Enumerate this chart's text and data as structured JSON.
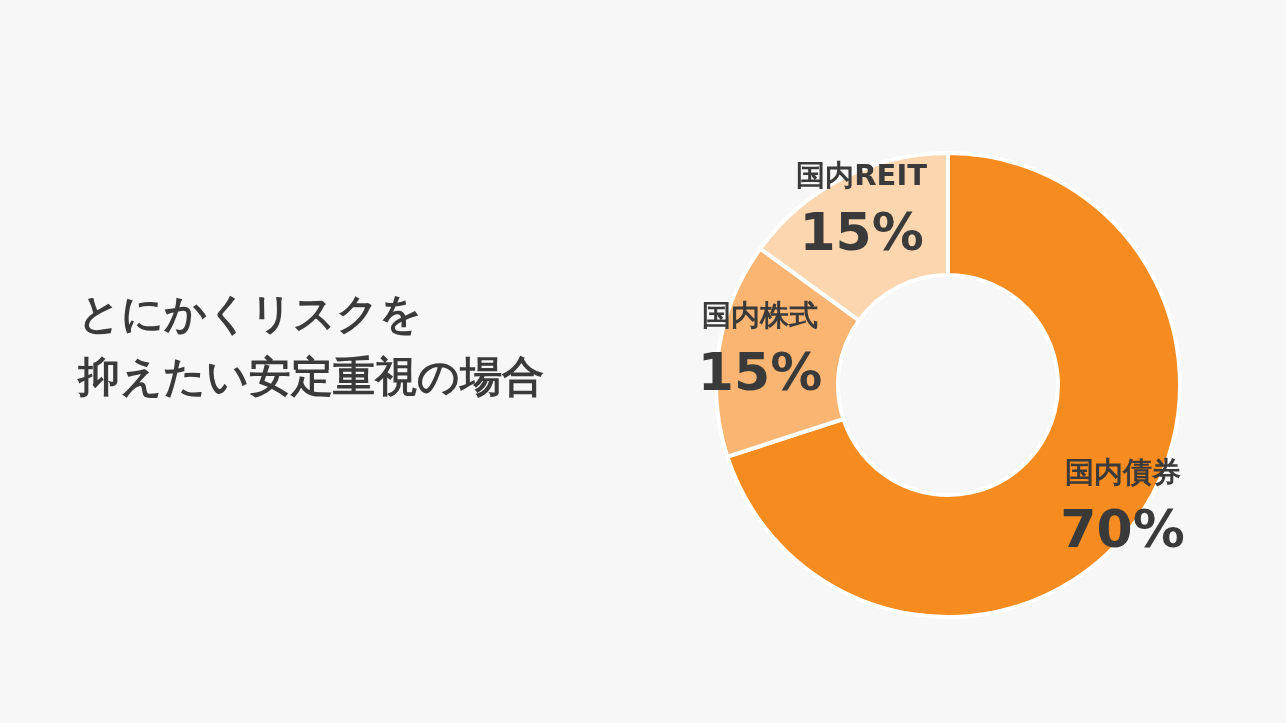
{
  "chart_data": {
    "type": "donut",
    "title": "とにかくリスクを",
    "subtitle": "抑えたい安定重視の場合",
    "categories": [
      "国内債券",
      "国内株式",
      "国内REIT"
    ],
    "values": [
      70,
      15,
      15
    ],
    "colors": [
      "#f68b1f",
      "#f9b571",
      "#fcd6ae"
    ],
    "value_labels": [
      "70%",
      "15%",
      "15%"
    ],
    "legend": false
  }
}
